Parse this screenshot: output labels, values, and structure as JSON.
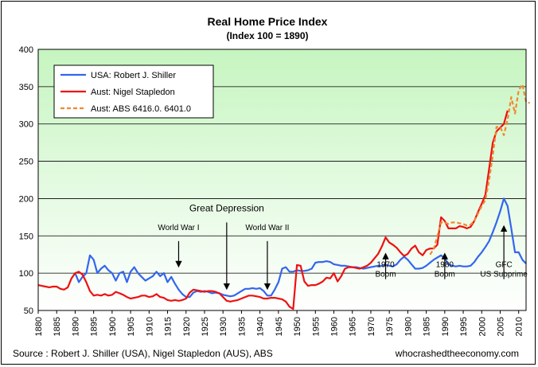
{
  "chart_data": {
    "type": "line",
    "title": "Real Home Price Index",
    "subtitle": "(Index 100 = 1890)",
    "xlabel": "",
    "ylabel": "",
    "xlim": [
      1880,
      2012
    ],
    "ylim": [
      50,
      400
    ],
    "y_ticks": [
      50,
      100,
      150,
      200,
      250,
      300,
      350,
      400
    ],
    "x_ticks": [
      1880,
      1885,
      1890,
      1895,
      1900,
      1905,
      1910,
      1915,
      1920,
      1925,
      1930,
      1935,
      1940,
      1945,
      1950,
      1955,
      1960,
      1965,
      1970,
      1975,
      1980,
      1985,
      1990,
      1995,
      2000,
      2005,
      2010
    ],
    "grid": true,
    "legend_position": "top-left",
    "series": [
      {
        "name": "USA: Robert J. Shiller",
        "color": "#3366ee",
        "dash": false,
        "points": [
          [
            1890,
            100
          ],
          [
            1891,
            88
          ],
          [
            1892,
            95
          ],
          [
            1893,
            100
          ],
          [
            1894,
            124
          ],
          [
            1895,
            118
          ],
          [
            1896,
            100
          ],
          [
            1897,
            106
          ],
          [
            1898,
            110
          ],
          [
            1899,
            104
          ],
          [
            1900,
            100
          ],
          [
            1901,
            90
          ],
          [
            1902,
            100
          ],
          [
            1903,
            102
          ],
          [
            1904,
            88
          ],
          [
            1905,
            102
          ],
          [
            1906,
            108
          ],
          [
            1907,
            100
          ],
          [
            1908,
            95
          ],
          [
            1909,
            90
          ],
          [
            1910,
            93
          ],
          [
            1911,
            96
          ],
          [
            1912,
            102
          ],
          [
            1913,
            96
          ],
          [
            1914,
            100
          ],
          [
            1915,
            88
          ],
          [
            1916,
            95
          ],
          [
            1917,
            86
          ],
          [
            1918,
            78
          ],
          [
            1919,
            72
          ],
          [
            1920,
            68
          ],
          [
            1921,
            68
          ],
          [
            1922,
            74
          ],
          [
            1923,
            76
          ],
          [
            1924,
            75
          ],
          [
            1925,
            76
          ],
          [
            1926,
            75
          ],
          [
            1927,
            73
          ],
          [
            1928,
            74
          ],
          [
            1929,
            73
          ],
          [
            1930,
            71
          ],
          [
            1931,
            70
          ],
          [
            1932,
            69
          ],
          [
            1933,
            70
          ],
          [
            1934,
            73
          ],
          [
            1935,
            76
          ],
          [
            1936,
            79
          ],
          [
            1937,
            79
          ],
          [
            1938,
            80
          ],
          [
            1939,
            79
          ],
          [
            1940,
            80
          ],
          [
            1941,
            76
          ],
          [
            1942,
            70
          ],
          [
            1943,
            70
          ],
          [
            1944,
            78
          ],
          [
            1945,
            88
          ],
          [
            1946,
            106
          ],
          [
            1947,
            108
          ],
          [
            1948,
            102
          ],
          [
            1949,
            102
          ],
          [
            1950,
            104
          ],
          [
            1951,
            103
          ],
          [
            1952,
            103
          ],
          [
            1953,
            104
          ],
          [
            1954,
            106
          ],
          [
            1955,
            114
          ],
          [
            1956,
            115
          ],
          [
            1957,
            115
          ],
          [
            1958,
            116
          ],
          [
            1959,
            115
          ],
          [
            1960,
            112
          ],
          [
            1961,
            111
          ],
          [
            1962,
            110
          ],
          [
            1963,
            110
          ],
          [
            1964,
            109
          ],
          [
            1965,
            108
          ],
          [
            1966,
            108
          ],
          [
            1967,
            107
          ],
          [
            1968,
            106
          ],
          [
            1969,
            107
          ],
          [
            1970,
            108
          ],
          [
            1971,
            109
          ],
          [
            1972,
            110
          ],
          [
            1973,
            110
          ],
          [
            1974,
            111
          ],
          [
            1975,
            110
          ],
          [
            1976,
            109
          ],
          [
            1977,
            112
          ],
          [
            1978,
            118
          ],
          [
            1979,
            122
          ],
          [
            1980,
            118
          ],
          [
            1981,
            112
          ],
          [
            1982,
            106
          ],
          [
            1983,
            106
          ],
          [
            1984,
            107
          ],
          [
            1985,
            110
          ],
          [
            1986,
            114
          ],
          [
            1987,
            118
          ],
          [
            1988,
            121
          ],
          [
            1989,
            124
          ],
          [
            1990,
            120
          ],
          [
            1991,
            112
          ],
          [
            1992,
            110
          ],
          [
            1993,
            109
          ],
          [
            1994,
            110
          ],
          [
            1995,
            109
          ],
          [
            1996,
            109
          ],
          [
            1997,
            110
          ],
          [
            1998,
            115
          ],
          [
            1999,
            122
          ],
          [
            2000,
            128
          ],
          [
            2001,
            135
          ],
          [
            2002,
            143
          ],
          [
            2003,
            155
          ],
          [
            2004,
            168
          ],
          [
            2005,
            183
          ],
          [
            2006,
            200
          ],
          [
            2007,
            190
          ],
          [
            2008,
            160
          ],
          [
            2009,
            128
          ],
          [
            2010,
            128
          ],
          [
            2011,
            118
          ],
          [
            2012,
            113
          ]
        ]
      },
      {
        "name": "Aust: Nigel Stapledon",
        "color": "#ee1111",
        "dash": false,
        "points": [
          [
            1880,
            84
          ],
          [
            1881,
            83
          ],
          [
            1882,
            82
          ],
          [
            1883,
            81
          ],
          [
            1884,
            82
          ],
          [
            1885,
            82
          ],
          [
            1886,
            79
          ],
          [
            1887,
            78
          ],
          [
            1888,
            81
          ],
          [
            1889,
            93
          ],
          [
            1890,
            100
          ],
          [
            1891,
            102
          ],
          [
            1892,
            98
          ],
          [
            1893,
            88
          ],
          [
            1894,
            76
          ],
          [
            1895,
            70
          ],
          [
            1896,
            71
          ],
          [
            1897,
            70
          ],
          [
            1898,
            72
          ],
          [
            1899,
            70
          ],
          [
            1900,
            71
          ],
          [
            1901,
            75
          ],
          [
            1902,
            73
          ],
          [
            1903,
            71
          ],
          [
            1904,
            68
          ],
          [
            1905,
            66
          ],
          [
            1906,
            67
          ],
          [
            1907,
            68
          ],
          [
            1908,
            70
          ],
          [
            1909,
            70
          ],
          [
            1910,
            68
          ],
          [
            1911,
            69
          ],
          [
            1912,
            72
          ],
          [
            1913,
            68
          ],
          [
            1914,
            67
          ],
          [
            1915,
            64
          ],
          [
            1916,
            63
          ],
          [
            1917,
            64
          ],
          [
            1918,
            63
          ],
          [
            1919,
            64
          ],
          [
            1920,
            66
          ],
          [
            1921,
            74
          ],
          [
            1922,
            78
          ],
          [
            1923,
            77
          ],
          [
            1924,
            76
          ],
          [
            1925,
            75
          ],
          [
            1926,
            76
          ],
          [
            1927,
            76
          ],
          [
            1928,
            75
          ],
          [
            1929,
            73
          ],
          [
            1930,
            68
          ],
          [
            1931,
            63
          ],
          [
            1932,
            62
          ],
          [
            1933,
            63
          ],
          [
            1934,
            64
          ],
          [
            1935,
            66
          ],
          [
            1936,
            68
          ],
          [
            1937,
            70
          ],
          [
            1938,
            70
          ],
          [
            1939,
            69
          ],
          [
            1940,
            68
          ],
          [
            1941,
            66
          ],
          [
            1942,
            66
          ],
          [
            1943,
            67
          ],
          [
            1944,
            67
          ],
          [
            1945,
            66
          ],
          [
            1946,
            65
          ],
          [
            1947,
            62
          ],
          [
            1948,
            55
          ],
          [
            1949,
            52
          ],
          [
            1950,
            111
          ],
          [
            1951,
            110
          ],
          [
            1952,
            89
          ],
          [
            1953,
            83
          ],
          [
            1954,
            84
          ],
          [
            1955,
            84
          ],
          [
            1956,
            86
          ],
          [
            1957,
            89
          ],
          [
            1958,
            94
          ],
          [
            1959,
            93
          ],
          [
            1960,
            100
          ],
          [
            1961,
            89
          ],
          [
            1962,
            96
          ],
          [
            1963,
            106
          ],
          [
            1964,
            108
          ],
          [
            1965,
            108
          ],
          [
            1966,
            107
          ],
          [
            1967,
            106
          ],
          [
            1968,
            108
          ],
          [
            1969,
            110
          ],
          [
            1970,
            114
          ],
          [
            1971,
            120
          ],
          [
            1972,
            126
          ],
          [
            1973,
            136
          ],
          [
            1974,
            148
          ],
          [
            1975,
            141
          ],
          [
            1976,
            138
          ],
          [
            1977,
            134
          ],
          [
            1978,
            128
          ],
          [
            1979,
            123
          ],
          [
            1980,
            126
          ],
          [
            1981,
            133
          ],
          [
            1982,
            137
          ],
          [
            1983,
            128
          ],
          [
            1984,
            124
          ],
          [
            1985,
            131
          ],
          [
            1986,
            133
          ],
          [
            1987,
            133
          ],
          [
            1988,
            138
          ],
          [
            1989,
            175
          ],
          [
            1990,
            170
          ],
          [
            1991,
            160
          ],
          [
            1992,
            160
          ],
          [
            1993,
            160
          ],
          [
            1994,
            163
          ],
          [
            1995,
            162
          ],
          [
            1996,
            160
          ],
          [
            1997,
            162
          ],
          [
            1998,
            170
          ],
          [
            1999,
            182
          ],
          [
            2000,
            193
          ],
          [
            2001,
            205
          ],
          [
            2002,
            240
          ],
          [
            2003,
            275
          ],
          [
            2004,
            290
          ],
          [
            2005,
            295
          ],
          [
            2006,
            300
          ],
          [
            2007,
            318
          ]
        ]
      },
      {
        "name": "Aust: ABS 6416.0. 6401.0",
        "color": "#f08830",
        "dash": true,
        "points": [
          [
            1986,
            125
          ],
          [
            1987,
            132
          ],
          [
            1988,
            150
          ],
          [
            1989,
            168
          ],
          [
            1990,
            168
          ],
          [
            1991,
            166
          ],
          [
            1992,
            168
          ],
          [
            1993,
            168
          ],
          [
            1994,
            167
          ],
          [
            1995,
            166
          ],
          [
            1996,
            164
          ],
          [
            1997,
            165
          ],
          [
            1998,
            170
          ],
          [
            1999,
            180
          ],
          [
            2000,
            190
          ],
          [
            2001,
            198
          ],
          [
            2002,
            225
          ],
          [
            2003,
            258
          ],
          [
            2004,
            296
          ],
          [
            2005,
            296
          ],
          [
            2006,
            285
          ],
          [
            2007,
            306
          ],
          [
            2008,
            336
          ],
          [
            2009,
            314
          ],
          [
            2010,
            345
          ],
          [
            2011,
            353
          ],
          [
            2012,
            330
          ],
          [
            2013,
            328
          ]
        ]
      }
    ],
    "annotations": [
      {
        "text": "World War I",
        "x": 1918,
        "label_y": 158,
        "arrow_from": 143,
        "arrow_to": 112
      },
      {
        "text": "Great Depression",
        "x": 1931,
        "label_y": 183,
        "arrow_from": 168,
        "arrow_to": 82
      },
      {
        "text": "World War II",
        "x": 1942,
        "label_y": 158,
        "arrow_from": 143,
        "arrow_to": 82
      },
      {
        "text": "1970\nBoom",
        "x": 1974,
        "label_y": 108,
        "arrow_from": 92,
        "arrow_to": 123
      },
      {
        "text": "1980\nBoom",
        "x": 1990,
        "label_y": 108,
        "arrow_from": 92,
        "arrow_to": 123
      },
      {
        "text": "GFC\nUS Subprime",
        "x": 2006,
        "label_y": 108,
        "arrow_from": 92,
        "arrow_to": 160
      }
    ]
  },
  "footer": {
    "source": "Source : Robert J. Shiller (USA), Nigel Stapledon (AUS), ABS",
    "website": "whocrashedtheeconomy.com"
  }
}
